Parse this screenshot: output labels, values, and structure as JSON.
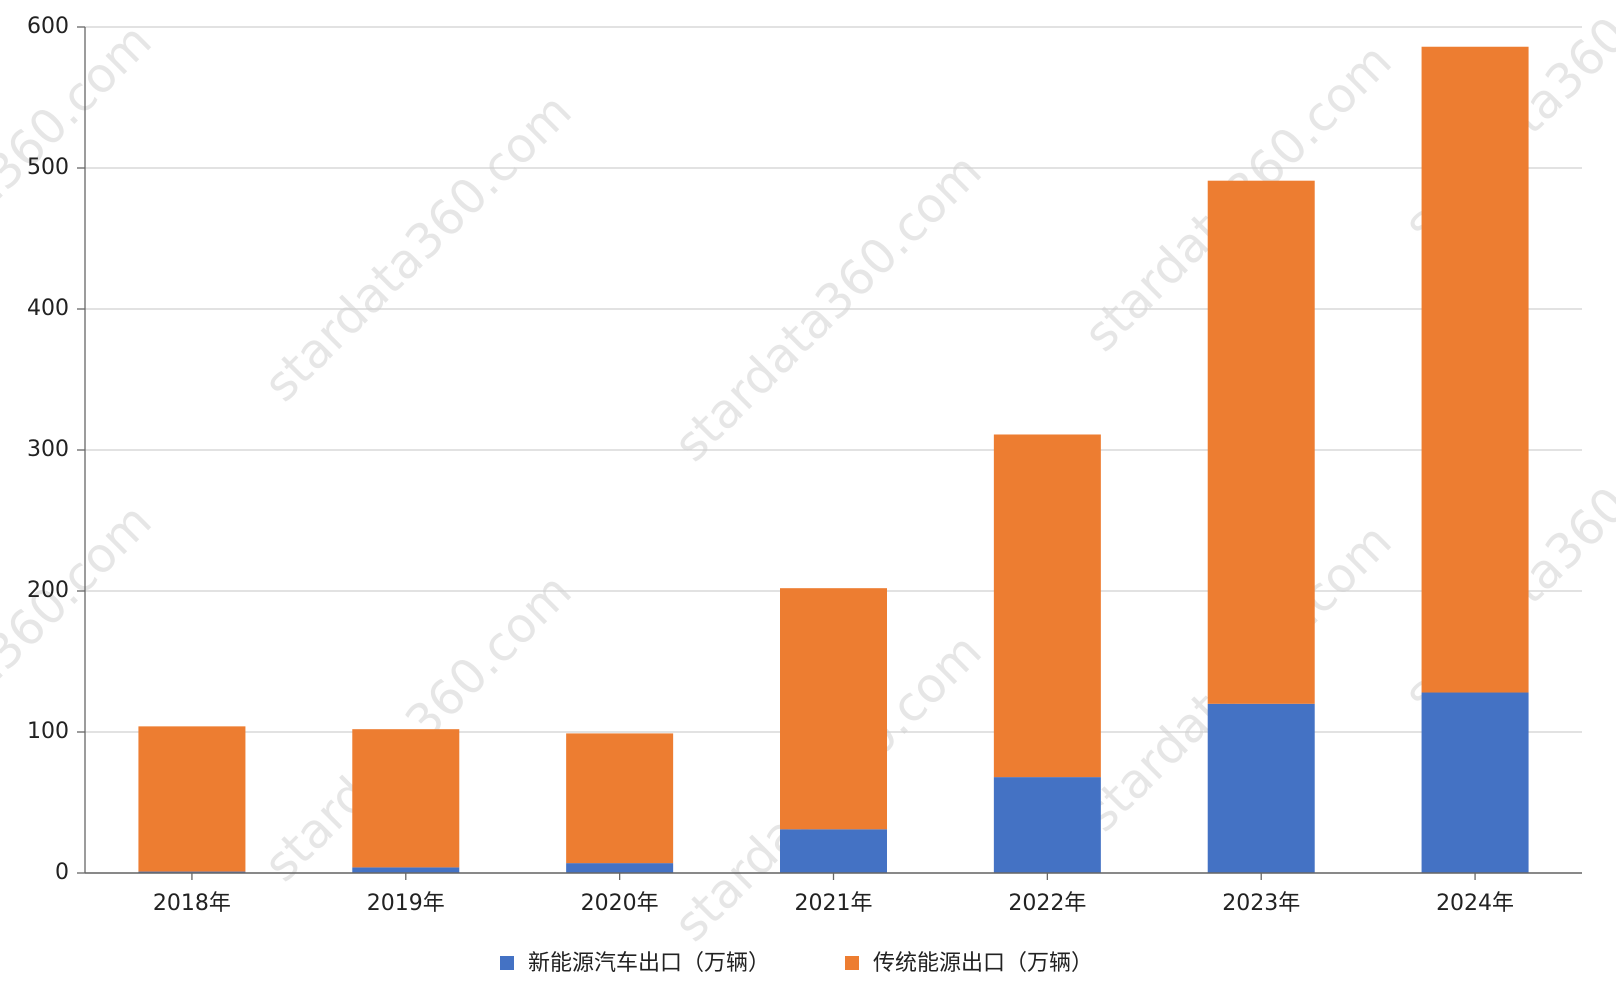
{
  "chart_data": {
    "type": "stacked-bar",
    "categories": [
      "2018年",
      "2019年",
      "2020年",
      "2021年",
      "2022年",
      "2023年",
      "2024年"
    ],
    "series": [
      {
        "name": "新能源汽车出口（万辆）",
        "color": "#4472c4",
        "values": [
          1,
          4,
          7,
          31,
          68,
          120,
          128
        ]
      },
      {
        "name": "传统能源出口（万辆）",
        "color": "#ed7d31",
        "values": [
          103,
          98,
          92,
          171,
          243,
          371,
          458
        ]
      }
    ],
    "ylim": [
      0,
      600
    ],
    "yticks": [
      0,
      100,
      200,
      300,
      400,
      500,
      600
    ],
    "grid": true,
    "legend": "bottom",
    "watermark": "stardata360.com"
  }
}
